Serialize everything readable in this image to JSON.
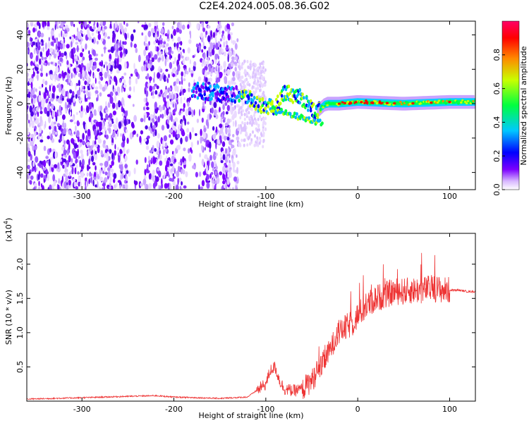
{
  "page": {
    "title": "C2E4.2024.005.08.36.G02"
  },
  "chart_data": [
    {
      "type": "heatmap",
      "xlabel": "Height of straight line (km)",
      "ylabel": "Frequency (Hz)",
      "xlim": [
        -360,
        128
      ],
      "ylim": [
        -50,
        48
      ],
      "xticks": [
        -300,
        -200,
        -100,
        0,
        100
      ],
      "yticks": [
        -40,
        -20,
        0,
        20,
        40
      ],
      "colorbar": {
        "label": "Normalized spectral amplitude",
        "range": [
          0.0,
          1.0
        ],
        "ticks": [
          "0.0",
          "0.2",
          "0.4",
          "0.6",
          "0.8"
        ],
        "colors": [
          "#ffffff",
          "#7b00ff",
          "#0000ff",
          "#00e5ff",
          "#00ff40",
          "#c8ff00",
          "#ff8800",
          "#ff0000",
          "#ff0066"
        ]
      },
      "description_points": {
        "noise_region_x": [
          -360,
          -130
        ],
        "ridge": [
          {
            "x": -180,
            "y": 8
          },
          {
            "x": -150,
            "y": 6
          },
          {
            "x": -125,
            "y": 5
          },
          {
            "x": -110,
            "y": 0
          },
          {
            "x": -90,
            "y": -3
          },
          {
            "x": -80,
            "y": 7
          },
          {
            "x": -60,
            "y": 3
          },
          {
            "x": -45,
            "y": -5
          },
          {
            "x": -35,
            "y": 0
          },
          {
            "x": -20,
            "y": 0
          },
          {
            "x": 0,
            "y": 1
          },
          {
            "x": 50,
            "y": 0
          },
          {
            "x": 100,
            "y": 1
          },
          {
            "x": 128,
            "y": 1
          }
        ]
      }
    },
    {
      "type": "line",
      "xlabel": "Height of straight line (km)",
      "ylabel": "SNR (10 * v/v)",
      "y_multiplier": "(x10",
      "y_multiplier_exp": "4",
      "y_multiplier_close": ")",
      "xlim": [
        -360,
        128
      ],
      "ylim": [
        0,
        2.45
      ],
      "xticks": [
        -300,
        -200,
        -100,
        0,
        100
      ],
      "yticks": [
        0.5,
        1.0,
        1.5,
        2.0
      ],
      "color": "#ee3333",
      "series": [
        {
          "x": [
            -360,
            -300,
            -250,
            -220,
            -200,
            -150,
            -120,
            -100,
            -95,
            -90,
            -85,
            -80,
            -70,
            -60,
            -50,
            -40,
            -30,
            -25,
            -20,
            -15,
            -10,
            -5,
            0,
            10,
            20,
            30,
            40,
            50,
            60,
            70,
            80,
            90,
            95,
            100,
            110,
            120,
            128
          ],
          "values": [
            0.03,
            0.05,
            0.07,
            0.08,
            0.06,
            0.04,
            0.06,
            0.25,
            0.45,
            0.5,
            0.3,
            0.18,
            0.15,
            0.18,
            0.3,
            0.5,
            0.75,
            0.9,
            1.0,
            1.05,
            1.1,
            1.15,
            1.25,
            1.4,
            1.5,
            1.55,
            1.6,
            1.6,
            1.62,
            1.62,
            1.65,
            1.63,
            1.62,
            1.62,
            1.62,
            1.6,
            1.6
          ]
        }
      ]
    }
  ]
}
